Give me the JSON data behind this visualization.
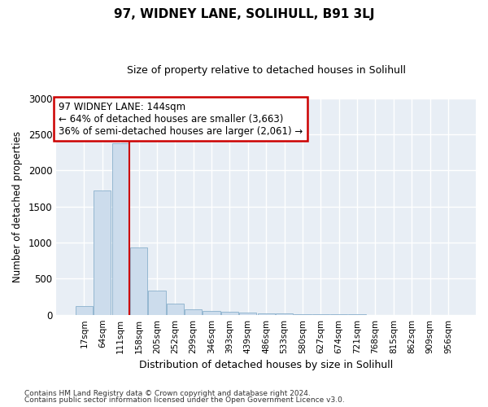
{
  "title": "97, WIDNEY LANE, SOLIHULL, B91 3LJ",
  "subtitle": "Size of property relative to detached houses in Solihull",
  "xlabel": "Distribution of detached houses by size in Solihull",
  "ylabel": "Number of detached properties",
  "bar_color": "#ccdcec",
  "bar_edge_color": "#8ab0cc",
  "background_color": "#e8eef5",
  "grid_color": "#ffffff",
  "fig_background": "#ffffff",
  "categories": [
    "17sqm",
    "64sqm",
    "111sqm",
    "158sqm",
    "205sqm",
    "252sqm",
    "299sqm",
    "346sqm",
    "393sqm",
    "439sqm",
    "486sqm",
    "533sqm",
    "580sqm",
    "627sqm",
    "674sqm",
    "721sqm",
    "768sqm",
    "815sqm",
    "862sqm",
    "909sqm",
    "956sqm"
  ],
  "values": [
    120,
    1720,
    2380,
    930,
    340,
    155,
    80,
    55,
    45,
    35,
    20,
    15,
    10,
    5,
    5,
    3,
    2,
    1,
    1,
    1,
    1
  ],
  "ylim": [
    0,
    3000
  ],
  "yticks": [
    0,
    500,
    1000,
    1500,
    2000,
    2500,
    3000
  ],
  "vline_color": "#cc0000",
  "annotation_text": "97 WIDNEY LANE: 144sqm\n← 64% of detached houses are smaller (3,663)\n36% of semi-detached houses are larger (2,061) →",
  "annotation_box_color": "#ffffff",
  "annotation_box_edge": "#cc0000",
  "footer_line1": "Contains HM Land Registry data © Crown copyright and database right 2024.",
  "footer_line2": "Contains public sector information licensed under the Open Government Licence v3.0."
}
